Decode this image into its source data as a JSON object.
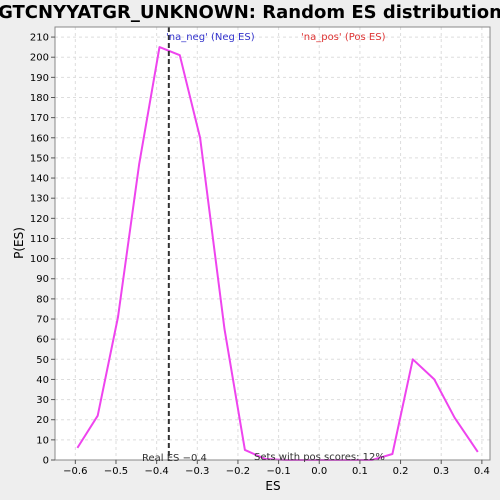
{
  "chart_data": {
    "type": "line",
    "title": "GTCNYYATGR_UNKNOWN: Random ES distribution",
    "xlabel": "ES",
    "ylabel": "P(ES)",
    "xlim": [
      -0.65,
      0.42
    ],
    "ylim": [
      0,
      215
    ],
    "x_ticks": [
      -0.6,
      -0.5,
      -0.4,
      -0.3,
      -0.2,
      -0.1,
      0.0,
      0.1,
      0.2,
      0.3,
      0.4
    ],
    "x_tick_labels": [
      "-0.6",
      "-0.5",
      "-0.4",
      "-0.3",
      "-0.2",
      "-0.1",
      "0.0",
      "0.1",
      "0.2",
      "0.3",
      "0.4"
    ],
    "y_ticks": [
      0,
      10,
      20,
      30,
      40,
      50,
      60,
      70,
      80,
      90,
      100,
      110,
      120,
      130,
      140,
      150,
      160,
      170,
      180,
      190,
      200,
      210
    ],
    "y_tick_labels": [
      "0",
      "10",
      "20",
      "30",
      "40",
      "50",
      "60",
      "70",
      "80",
      "90",
      "100",
      "110",
      "120",
      "130",
      "140",
      "150",
      "160",
      "170",
      "180",
      "190",
      "200",
      "210"
    ],
    "grid": true,
    "series": [
      {
        "color": "#ee44ee",
        "x": [
          -0.595,
          -0.545,
          -0.495,
          -0.443,
          -0.393,
          -0.343,
          -0.293,
          -0.233,
          -0.183,
          -0.133,
          -0.083,
          0.0,
          0.03,
          0.08,
          0.13,
          0.18,
          0.23,
          0.283,
          0.333,
          0.39
        ],
        "y": [
          6,
          22,
          71,
          147,
          205,
          201,
          160,
          65,
          5,
          0.5,
          0,
          0,
          0,
          0,
          0,
          3,
          50,
          40,
          21,
          4
        ]
      }
    ],
    "legend": [
      {
        "label": "'na_neg' (Neg ES)",
        "color": "#3333cc"
      },
      {
        "label": "'na_pos' (Pos ES)",
        "color": "#dd3333"
      }
    ],
    "legend_placement": "top",
    "vline": {
      "x": -0.37,
      "label": "Real ES -0.4"
    },
    "annotation": "Sets with pos scores: 12%"
  }
}
